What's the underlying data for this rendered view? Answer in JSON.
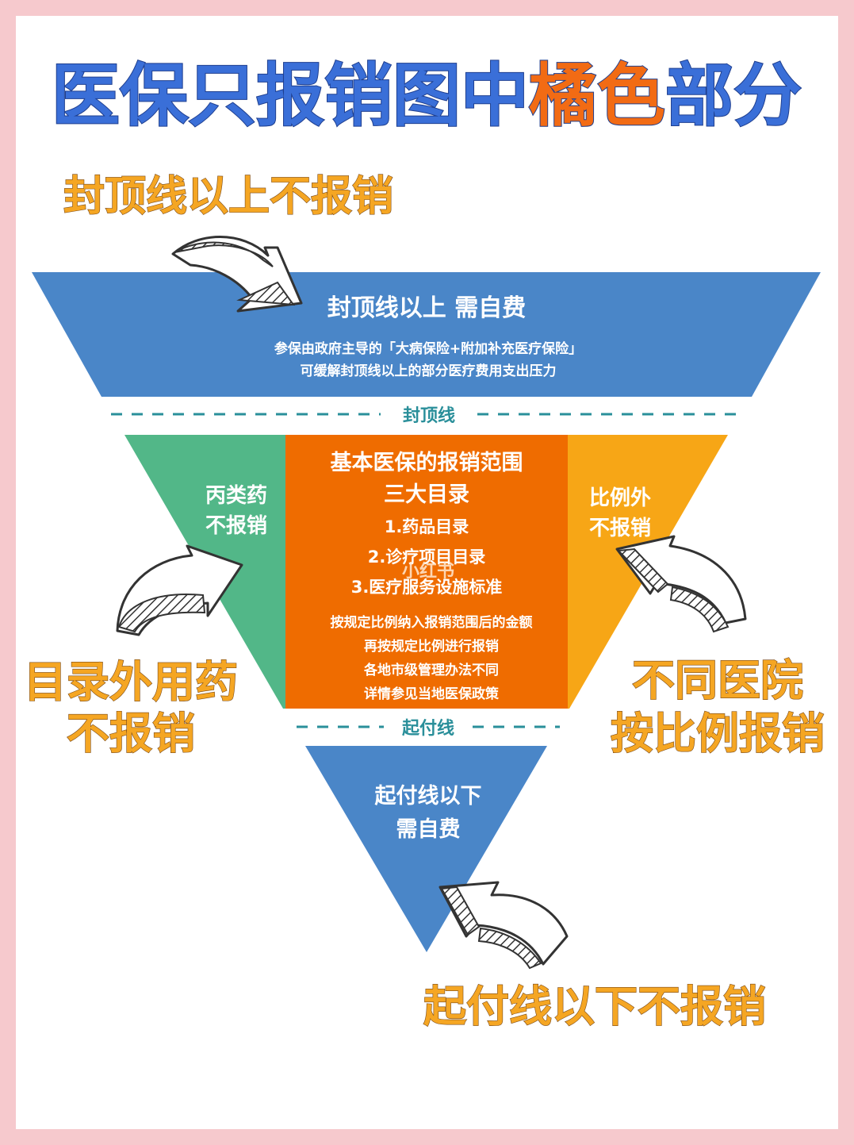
{
  "title": {
    "part1": "医保只报销图中",
    "part2": "橘色",
    "part3": "部分"
  },
  "annotations": {
    "top": "封顶线以上不报销",
    "left_line1": "目录外用药",
    "left_line2": "不报销",
    "right_line1": "不同医院",
    "right_line2": "按比例报销",
    "bottom": "起付线以下不报销"
  },
  "top_band": {
    "heading": "封顶线以上 需自费",
    "desc_line1": "参保由政府主导的「大病保险+附加补充医疗保险」",
    "desc_line2": "可缓解封顶线以上的部分医疗费用支出压力"
  },
  "ceiling_line": "封顶线",
  "left_zone": {
    "line1": "丙类药",
    "line2": "不报销"
  },
  "center_zone": {
    "heading1": "基本医保的报销范围",
    "heading2": "三大目录",
    "items": [
      "1.药品目录",
      "2.诊疗项目目录",
      "3.医疗服务设施标准"
    ],
    "notes": [
      "按规定比例纳入报销范围后的金额",
      "再按规定比例进行报销",
      "各地市级管理办法不同",
      "详情参见当地医保政策"
    ]
  },
  "right_zone": {
    "line1": "比例外",
    "line2": "不报销"
  },
  "deductible_line": "起付线",
  "bottom_zone": {
    "line1": "起付线以下",
    "line2": "需自费"
  },
  "watermark": "小红书",
  "colors": {
    "blue": "#4a86c8",
    "green": "#52b788",
    "orange": "#ef6c00",
    "amber": "#f7a616",
    "title_blue": "#3a6fd8",
    "title_orange": "#f26b14",
    "annotation": "#f5a623",
    "dashed_line": "#2a8f9a"
  }
}
